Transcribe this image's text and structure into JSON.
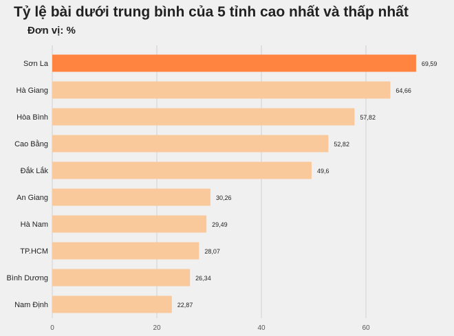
{
  "title": "Tỷ lệ bài dưới trung bình của 5 tỉnh cao nhất và thấp nhất",
  "subtitle": "Đơn vị: %",
  "chart_data": {
    "type": "bar",
    "orientation": "horizontal",
    "title": "Tỷ lệ bài dưới trung bình của 5 tỉnh cao nhất và thấp nhất",
    "unit": "Đơn vị: %",
    "categories": [
      "Sơn La",
      "Hà Giang",
      "Hòa Bình",
      "Cao Bằng",
      "Đắk Lắk",
      "An Giang",
      "Hà Nam",
      "TP.HCM",
      "Bình Dương",
      "Nam Định"
    ],
    "values": [
      69.59,
      64.66,
      57.82,
      52.82,
      49.6,
      30.26,
      29.49,
      28.07,
      26.34,
      22.87
    ],
    "value_labels": [
      "69,59",
      "64,66",
      "57,82",
      "52,82",
      "49,6",
      "30,26",
      "29,49",
      "28,07",
      "26,34",
      "22,87"
    ],
    "xticks": [
      0,
      20,
      40,
      60
    ],
    "xlim": [
      0,
      76
    ],
    "grid": true,
    "colors": {
      "highlight": "#ff8440",
      "bar": "#f9c99b"
    }
  }
}
